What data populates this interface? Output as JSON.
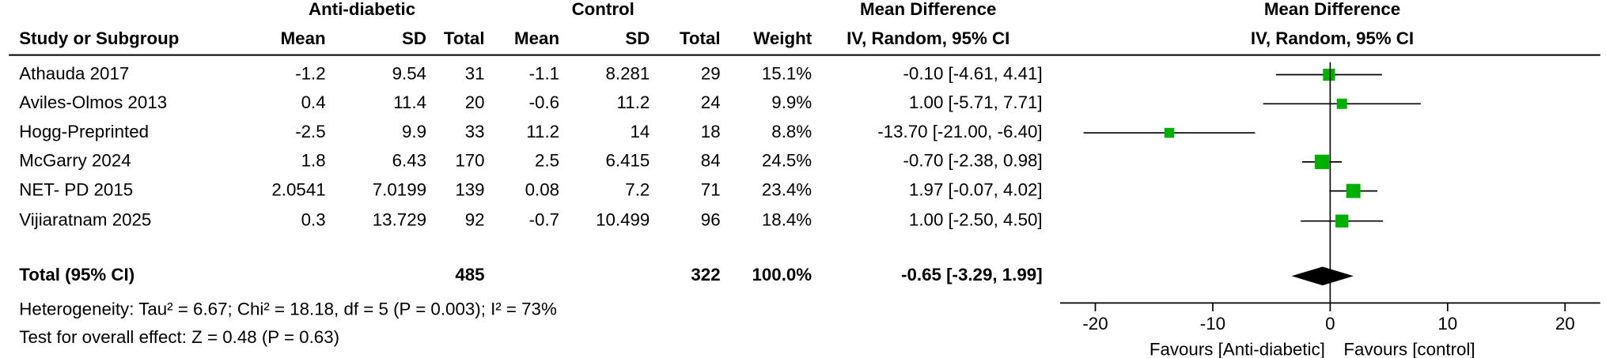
{
  "chart_data": {
    "type": "forest",
    "group_headers": [
      "Anti-diabetic",
      "Control"
    ],
    "column_headers": [
      "Study or Subgroup",
      "Mean",
      "SD",
      "Total",
      "Mean",
      "SD",
      "Total",
      "Weight"
    ],
    "effect_header": "Mean Difference",
    "effect_subheader": "IV, Random, 95% CI",
    "plot_header": "Mean Difference",
    "plot_subheader": "IV, Random, 95% CI",
    "square_color": "#00b000",
    "diamond_color": "#000000",
    "studies": [
      {
        "study": "Athauda 2017",
        "exp_mean": -1.2,
        "exp_sd": 9.54,
        "exp_total": 31,
        "ctl_mean": -1.1,
        "ctl_sd": 8.281,
        "ctl_total": 29,
        "weight": 15.1,
        "weight_label": "15.1%",
        "md": -0.1,
        "ci_low": -4.61,
        "ci_high": 4.41,
        "ci_label": "-0.10 [-4.61, 4.41]"
      },
      {
        "study": "Aviles-Olmos  2013",
        "exp_mean": 0.4,
        "exp_sd": 11.4,
        "exp_total": 20,
        "ctl_mean": -0.6,
        "ctl_sd": 11.2,
        "ctl_total": 24,
        "weight": 9.9,
        "weight_label": "9.9%",
        "md": 1.0,
        "ci_low": -5.71,
        "ci_high": 7.71,
        "ci_label": "1.00 [-5.71, 7.71]"
      },
      {
        "study": "Hogg-Preprinted",
        "exp_mean": -2.5,
        "exp_sd": 9.9,
        "exp_total": 33,
        "ctl_mean": 11.2,
        "ctl_sd": 14,
        "ctl_total": 18,
        "weight": 8.8,
        "weight_label": "8.8%",
        "md": -13.7,
        "ci_low": -21.0,
        "ci_high": -6.4,
        "ci_label": "-13.70 [-21.00, -6.40]"
      },
      {
        "study": "McGarry  2024",
        "exp_mean": 1.8,
        "exp_sd": 6.43,
        "exp_total": 170,
        "ctl_mean": 2.5,
        "ctl_sd": 6.415,
        "ctl_total": 84,
        "weight": 24.5,
        "weight_label": "24.5%",
        "md": -0.7,
        "ci_low": -2.38,
        "ci_high": 0.98,
        "ci_label": "-0.70 [-2.38, 0.98]"
      },
      {
        "study": "NET- PD  2015",
        "exp_mean": 2.0541,
        "exp_sd": 7.0199,
        "exp_total": 139,
        "ctl_mean": 0.08,
        "ctl_sd": 7.2,
        "ctl_total": 71,
        "weight": 23.4,
        "weight_label": "23.4%",
        "md": 1.97,
        "ci_low": -0.07,
        "ci_high": 4.02,
        "ci_label": "1.97 [-0.07, 4.02]"
      },
      {
        "study": "Vijiaratnam  2025",
        "exp_mean": 0.3,
        "exp_sd": 13.729,
        "exp_total": 92,
        "ctl_mean": -0.7,
        "ctl_sd": 10.499,
        "ctl_total": 96,
        "weight": 18.4,
        "weight_label": "18.4%",
        "md": 1.0,
        "ci_low": -2.5,
        "ci_high": 4.5,
        "ci_label": "1.00 [-2.50, 4.50]"
      }
    ],
    "total": {
      "study": "Total (95% CI)",
      "exp_total": 485,
      "ctl_total": 322,
      "weight": 100.0,
      "weight_label": "100.0%",
      "md": -0.65,
      "ci_low": -3.29,
      "ci_high": 1.99,
      "ci_label": "-0.65 [-3.29, 1.99]"
    },
    "heterogeneity": "Heterogeneity: Tau² = 6.67; Chi² = 18.18, df = 5 (P = 0.003); I² = 73%",
    "overall_effect": "Test for overall effect: Z = 0.48 (P = 0.63)",
    "xlim": [
      -23,
      23
    ],
    "xticks": [
      -20,
      -10,
      0,
      10,
      20
    ],
    "favours_left": "Favours [Anti-diabetic]",
    "favours_right": "Favours [control]"
  }
}
